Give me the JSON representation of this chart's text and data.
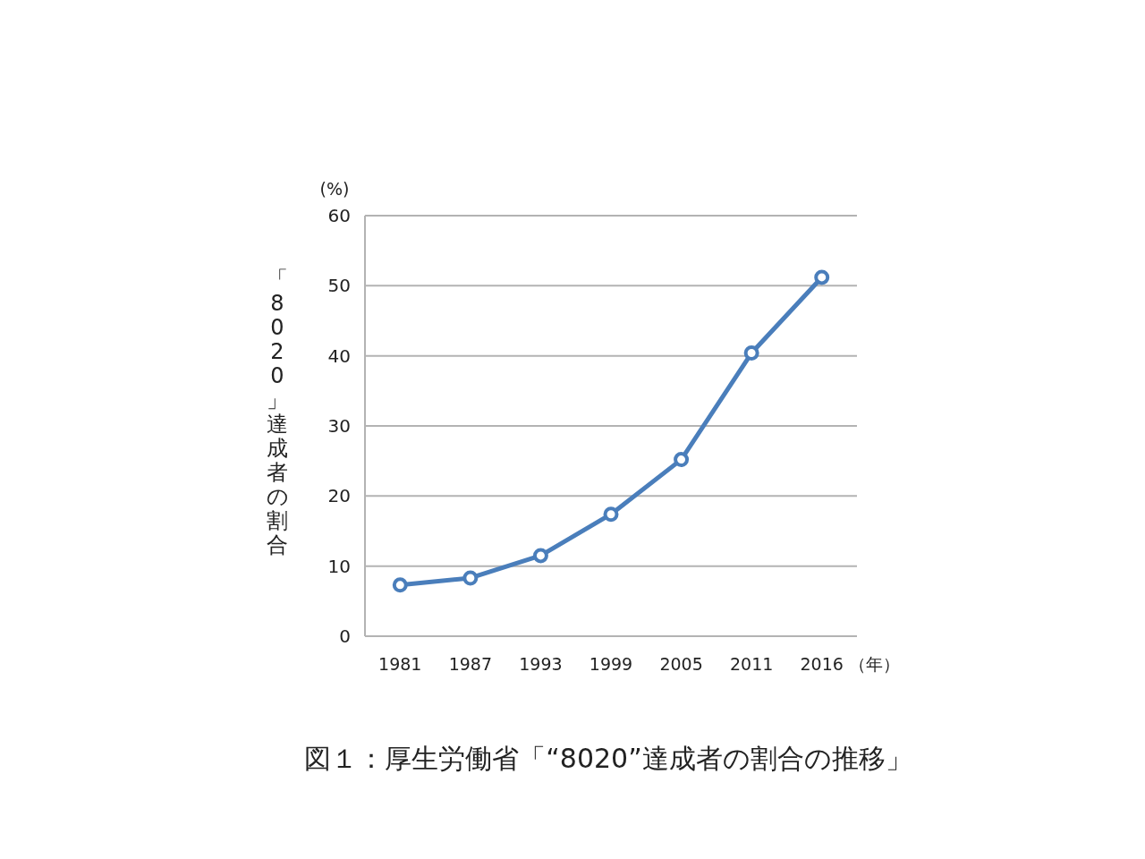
{
  "chart_data": {
    "type": "line",
    "title": "図１：厚生労働省「“8020”達成者の割合の推移」",
    "xlabel": "（年）",
    "ylabel": "「8020」達成者の割合",
    "annotations": [
      "(%)"
    ],
    "categories": [
      "1981",
      "1987",
      "1993",
      "1999",
      "2005",
      "2011",
      "2016"
    ],
    "series": [
      {
        "color": "#4a7ebb",
        "values": [
          7.3,
          8.3,
          11.5,
          17.4,
          25.2,
          40.4,
          51.2
        ]
      }
    ],
    "ylim": [
      0,
      60
    ],
    "yticks": [
      0,
      10,
      20,
      30,
      40,
      50,
      60
    ],
    "grid": "y",
    "marker": "circle",
    "line_style": "solid"
  }
}
